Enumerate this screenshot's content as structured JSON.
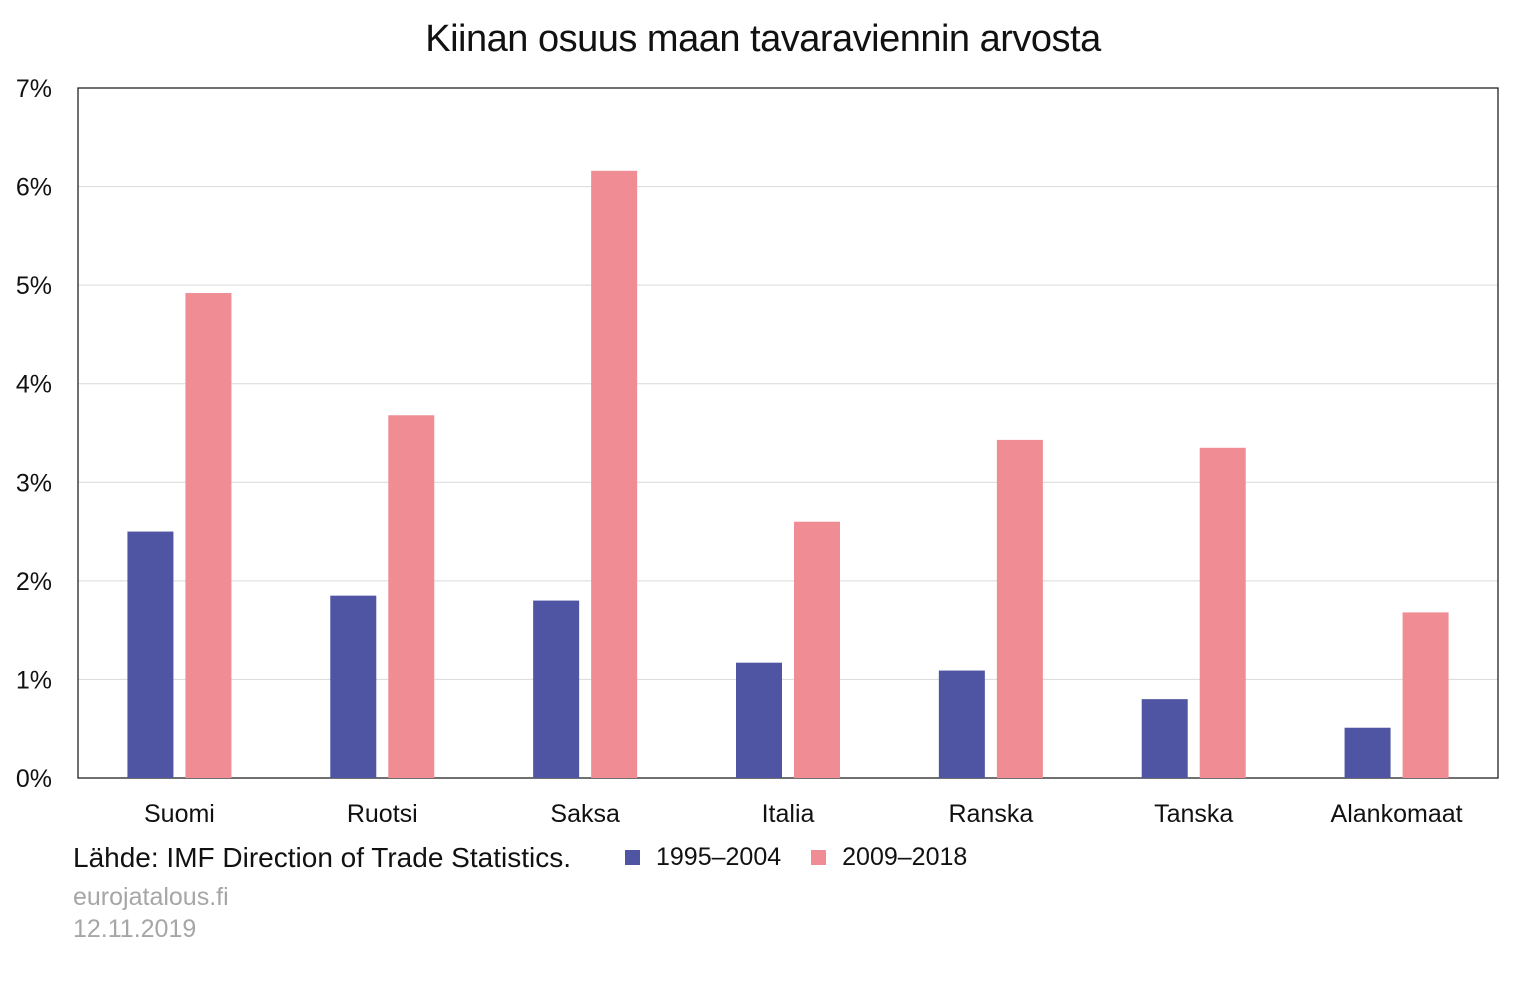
{
  "chart_data": {
    "type": "bar",
    "title": "Kiinan osuus maan tavaraviennin arvosta",
    "categories": [
      "Suomi",
      "Ruotsi",
      "Saksa",
      "Italia",
      "Ranska",
      "Tanska",
      "Alankomaat"
    ],
    "series": [
      {
        "name": "1995–2004",
        "color": "#4f55a3",
        "values": [
          2.5,
          1.85,
          1.8,
          1.17,
          1.09,
          0.8,
          0.51
        ]
      },
      {
        "name": "2009–2018",
        "color": "#f08c93",
        "values": [
          4.92,
          3.68,
          6.16,
          2.6,
          3.43,
          3.35,
          1.68
        ]
      }
    ],
    "ylim": [
      0,
      7
    ],
    "yticks": [
      "0%",
      "1%",
      "2%",
      "3%",
      "4%",
      "5%",
      "6%",
      "7%"
    ],
    "xlabel": "",
    "ylabel": "",
    "grid": true,
    "legend_position": "bottom"
  },
  "footer": {
    "source": "Lähde: IMF Direction of Trade Statistics.",
    "site": "eurojatalous.fi",
    "date": "12.11.2019"
  }
}
